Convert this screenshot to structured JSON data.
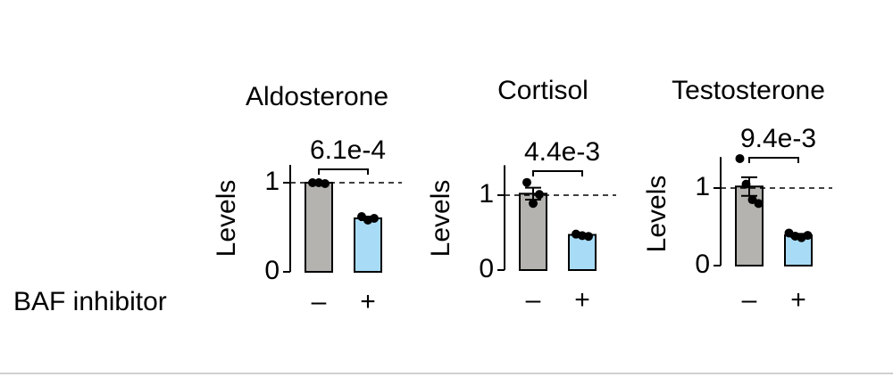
{
  "x_label": "BAF inhibitor",
  "chart_data": [
    {
      "type": "bar",
      "title": "Aldosterone",
      "ylabel": "Levels",
      "annotation": "6.1e-4",
      "categories": [
        "–",
        "+"
      ],
      "values": [
        1.0,
        0.6
      ],
      "errors": [
        0.01,
        0.02
      ],
      "points": [
        [
          1.0,
          1.0,
          0.99
        ],
        [
          0.62,
          0.58,
          0.6
        ]
      ],
      "colors": [
        "#b4b3af",
        "#a8dcf6"
      ],
      "ylim": [
        0,
        1.2
      ],
      "yticks": [
        0,
        1
      ],
      "ref_line": 1
    },
    {
      "type": "bar",
      "title": "Cortisol",
      "ylabel": "Levels",
      "annotation": "4.4e-3",
      "categories": [
        "–",
        "+"
      ],
      "values": [
        1.02,
        0.47
      ],
      "errors": [
        0.08,
        0.01
      ],
      "points": [
        [
          1.17,
          0.89,
          1.01
        ],
        [
          0.48,
          0.46,
          0.45
        ]
      ],
      "colors": [
        "#b4b3af",
        "#a8dcf6"
      ],
      "ylim": [
        0,
        1.4
      ],
      "yticks": [
        0,
        1
      ],
      "ref_line": 1
    },
    {
      "type": "bar",
      "title": "Testosterone",
      "ylabel": "Levels",
      "annotation": "9.4e-3",
      "categories": [
        "–",
        "+"
      ],
      "values": [
        1.02,
        0.39
      ],
      "errors": [
        0.12,
        0.02
      ],
      "points": [
        [
          1.38,
          1.05,
          0.85,
          0.8
        ],
        [
          0.42,
          0.38,
          0.36,
          0.39
        ]
      ],
      "colors": [
        "#b4b3af",
        "#a8dcf6"
      ],
      "ylim": [
        0,
        1.4
      ],
      "yticks": [
        0,
        1
      ],
      "ref_line": 1
    }
  ]
}
